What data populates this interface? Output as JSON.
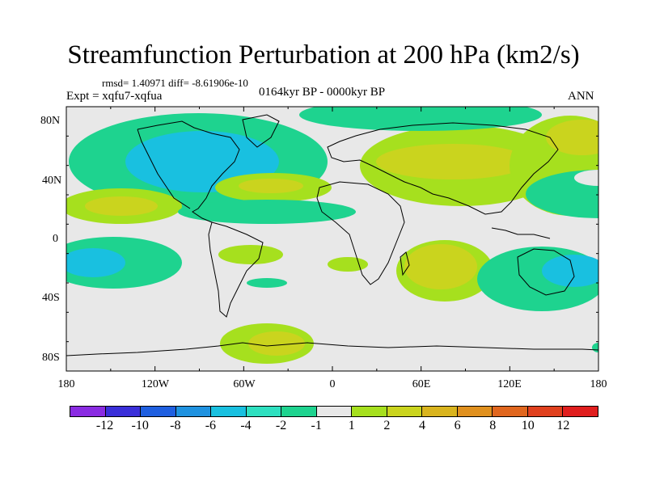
{
  "title": "Streamfunction Perturbation at 200 hPa (km2/s)",
  "stats": "rmsd= 1.40971 diff= -8.61906e-10",
  "expt": "Expt = xqfu7-xqfua",
  "period": "0164kyr BP - 0000kyr BP",
  "season": "ANN",
  "lat_ticks": [
    "80N",
    "40N",
    "0",
    "40S",
    "80S"
  ],
  "lon_ticks": [
    "180",
    "120W",
    "60W",
    "0",
    "60E",
    "120E",
    "180"
  ],
  "colorbar": {
    "colors": [
      "#8a2be2",
      "#3a2fd9",
      "#1f5fe0",
      "#1f92e0",
      "#19c0e0",
      "#2ee0c0",
      "#1ed38f",
      "#e8e8e8",
      "#a6e01e",
      "#cad41e",
      "#d9b41e",
      "#e0901e",
      "#e0661e",
      "#e0401e",
      "#e01e1e"
    ],
    "labels": [
      "-12",
      "-10",
      "-8",
      "-6",
      "-4",
      "-2",
      "-1",
      "1",
      "2",
      "4",
      "6",
      "8",
      "10",
      "12"
    ]
  },
  "chart_data": {
    "type": "heatmap",
    "title": "Streamfunction Perturbation at 200 hPa (km2/s)",
    "x_range": [
      -180,
      180
    ],
    "y_range": [
      -90,
      90
    ],
    "levels": [
      -12,
      -10,
      -8,
      -6,
      -4,
      -2,
      -1,
      1,
      2,
      4,
      6,
      8,
      10,
      12
    ],
    "features": [
      {
        "lon": -80,
        "lat": 55,
        "value": -5
      },
      {
        "lon": -145,
        "lat": 25,
        "value": 2
      },
      {
        "lon": -35,
        "lat": 37,
        "value": 4
      },
      {
        "lon": -20,
        "lat": 25,
        "value": -2
      },
      {
        "lon": 45,
        "lat": 42,
        "value": 2
      },
      {
        "lon": 160,
        "lat": 50,
        "value": 2
      },
      {
        "lon": 165,
        "lat": 35,
        "value": -2
      },
      {
        "lon": -150,
        "lat": -15,
        "value": -3
      },
      {
        "lon": 55,
        "lat": -18,
        "value": 4
      },
      {
        "lon": 140,
        "lat": -22,
        "value": -4
      },
      {
        "lon": -50,
        "lat": -75,
        "value": 2
      }
    ]
  }
}
